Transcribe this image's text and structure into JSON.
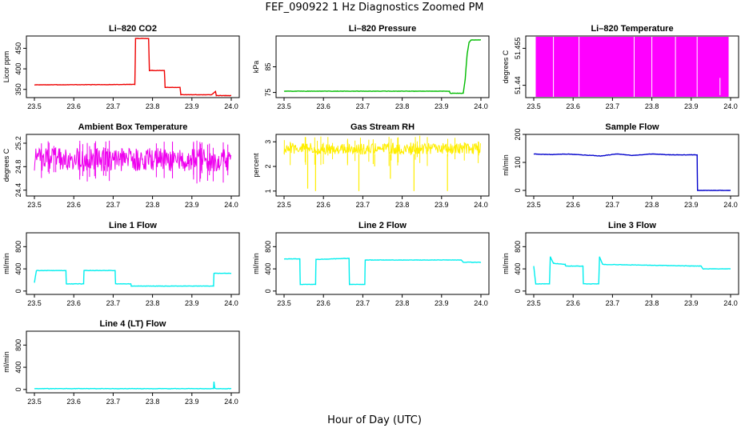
{
  "title": "FEF_090922  1 Hz Diagnostics Zoomed PM",
  "xlabel": "Hour of Day (UTC)",
  "chart_data": [
    {
      "type": "line",
      "title": "Li–820 CO2",
      "ylabel": "Licor ppm",
      "xlim": [
        23.5,
        24.0
      ],
      "xticks": [
        23.5,
        23.6,
        23.7,
        23.8,
        23.9,
        24.0
      ],
      "ylim": [
        330,
        480
      ],
      "yticks": [
        350,
        400,
        450
      ],
      "color": "#ee0000",
      "series": [
        {
          "x": [
            23.5,
            23.755,
            23.757,
            23.79,
            23.792,
            23.83,
            23.832,
            23.87,
            23.872,
            23.95,
            23.96,
            23.962,
            24.0
          ],
          "y": [
            361,
            362,
            474,
            474,
            396,
            396,
            355,
            355,
            337,
            337,
            345,
            335,
            335
          ]
        }
      ]
    },
    {
      "type": "line",
      "title": "Li–820 Pressure",
      "ylabel": "kPa",
      "xlim": [
        23.5,
        24.0
      ],
      "xticks": [
        23.5,
        23.6,
        23.7,
        23.8,
        23.9,
        24.0
      ],
      "ylim": [
        73,
        97
      ],
      "yticks": [
        75,
        85
      ],
      "color": "#00bb00",
      "series": [
        {
          "x": [
            23.5,
            23.92,
            23.922,
            23.955,
            23.96,
            23.965,
            23.97,
            23.975,
            24.0
          ],
          "y": [
            75.5,
            75.5,
            74.7,
            74.7,
            80,
            90,
            94.5,
            95.5,
            95.5
          ]
        }
      ]
    },
    {
      "type": "bar",
      "title": "Li–820 Temperature",
      "ylabel": "degrees C",
      "xlim": [
        23.5,
        24.0
      ],
      "xticks": [
        23.5,
        23.6,
        23.7,
        23.8,
        23.9,
        24.0
      ],
      "ylim": [
        51.435,
        51.46
      ],
      "yticks": [
        51.44,
        51.455
      ],
      "color": "#ff00ff",
      "band": [
        23.505,
        23.995
      ],
      "gaps": [
        23.55,
        23.615,
        23.755,
        23.8,
        23.86,
        23.915
      ],
      "spike": {
        "x": 23.965,
        "y": [
          51.436,
          51.443
        ]
      }
    },
    {
      "type": "line",
      "title": "Ambient Box Temperature",
      "ylabel": "degrees C",
      "xlim": [
        23.5,
        24.0
      ],
      "xticks": [
        23.5,
        23.6,
        23.7,
        23.8,
        23.9,
        24.0
      ],
      "ylim": [
        24.3,
        25.35
      ],
      "yticks": [
        24.4,
        24.8,
        25.2
      ],
      "color": "#ee00ee",
      "band": {
        "low": 24.72,
        "high": 25.12
      }
    },
    {
      "type": "line",
      "title": "Gas Stream RH",
      "ylabel": "percent",
      "xlim": [
        23.5,
        24.0
      ],
      "xticks": [
        23.5,
        23.6,
        23.7,
        23.8,
        23.9,
        24.0
      ],
      "ylim": [
        0.8,
        3.3
      ],
      "yticks": [
        1.0,
        2.0,
        3.0
      ],
      "color": "#ffee00",
      "band": {
        "low": 2.5,
        "high": 2.95
      },
      "dips": [
        [
          23.56,
          1.1
        ],
        [
          23.58,
          1.0
        ],
        [
          23.69,
          1.0
        ],
        [
          23.73,
          2.0
        ],
        [
          23.77,
          1.5
        ],
        [
          23.83,
          1.0
        ],
        [
          23.915,
          1.0
        ]
      ]
    },
    {
      "type": "line",
      "title": "Sample Flow",
      "ylabel": "ml/min",
      "xlim": [
        23.5,
        24.0
      ],
      "xticks": [
        23.5,
        23.6,
        23.7,
        23.8,
        23.9,
        24.0
      ],
      "ylim": [
        -20,
        200
      ],
      "yticks": [
        0,
        100,
        200
      ],
      "color": "#0000cc",
      "series": [
        {
          "x": [
            23.5,
            23.55,
            23.58,
            23.62,
            23.67,
            23.71,
            23.75,
            23.8,
            23.85,
            23.9,
            23.915,
            23.916,
            24.0
          ],
          "y": [
            130,
            128,
            130,
            127,
            123,
            130,
            125,
            130,
            127,
            127,
            127,
            0,
            0
          ]
        }
      ]
    },
    {
      "type": "line",
      "title": "Line 1 Flow",
      "ylabel": "ml/min",
      "xlim": [
        23.5,
        24.0
      ],
      "xticks": [
        23.5,
        23.6,
        23.7,
        23.8,
        23.9,
        24.0
      ],
      "ylim": [
        -60,
        1050
      ],
      "yticks": [
        0,
        400,
        800
      ],
      "color": "#00eeee",
      "series": [
        {
          "x": [
            23.5,
            23.505,
            23.58,
            23.581,
            23.625,
            23.626,
            23.705,
            23.706,
            23.745,
            23.746,
            23.955,
            23.956,
            24.0
          ],
          "y": [
            150,
            370,
            370,
            130,
            130,
            370,
            370,
            130,
            130,
            90,
            90,
            320,
            320
          ]
        }
      ]
    },
    {
      "type": "line",
      "title": "Line 2 Flow",
      "ylabel": "ml/min",
      "xlim": [
        23.5,
        24.0
      ],
      "xticks": [
        23.5,
        23.6,
        23.7,
        23.8,
        23.9,
        24.0
      ],
      "ylim": [
        -60,
        1050
      ],
      "yticks": [
        0,
        400,
        800
      ],
      "color": "#00eeee",
      "series": [
        {
          "x": [
            23.5,
            23.54,
            23.541,
            23.58,
            23.581,
            23.665,
            23.666,
            23.705,
            23.706,
            23.95,
            23.955,
            24.0
          ],
          "y": [
            580,
            580,
            120,
            120,
            570,
            590,
            120,
            120,
            560,
            560,
            520,
            520
          ]
        }
      ]
    },
    {
      "type": "line",
      "title": "Line 3 Flow",
      "ylabel": "ml/min",
      "xlim": [
        23.5,
        24.0
      ],
      "xticks": [
        23.5,
        23.6,
        23.7,
        23.8,
        23.9,
        24.0
      ],
      "ylim": [
        -60,
        1050
      ],
      "yticks": [
        0,
        400,
        800
      ],
      "color": "#00eeee",
      "series": [
        {
          "x": [
            23.5,
            23.505,
            23.54,
            23.542,
            23.55,
            23.58,
            23.581,
            23.625,
            23.626,
            23.665,
            23.667,
            23.675,
            23.925,
            23.93,
            24.0
          ],
          "y": [
            450,
            130,
            130,
            620,
            500,
            480,
            450,
            450,
            130,
            130,
            620,
            480,
            450,
            400,
            400
          ]
        }
      ]
    },
    {
      "type": "line",
      "title": "Line 4 (LT) Flow",
      "ylabel": "ml/min",
      "xlim": [
        23.5,
        24.0
      ],
      "xticks": [
        23.5,
        23.6,
        23.7,
        23.8,
        23.9,
        24.0
      ],
      "ylim": [
        -60,
        1050
      ],
      "yticks": [
        0,
        400,
        800
      ],
      "color": "#00eeee",
      "series": [
        {
          "x": [
            23.5,
            23.955,
            23.956,
            23.958,
            23.96,
            24.0
          ],
          "y": [
            15,
            15,
            140,
            30,
            15,
            15
          ]
        }
      ]
    }
  ]
}
